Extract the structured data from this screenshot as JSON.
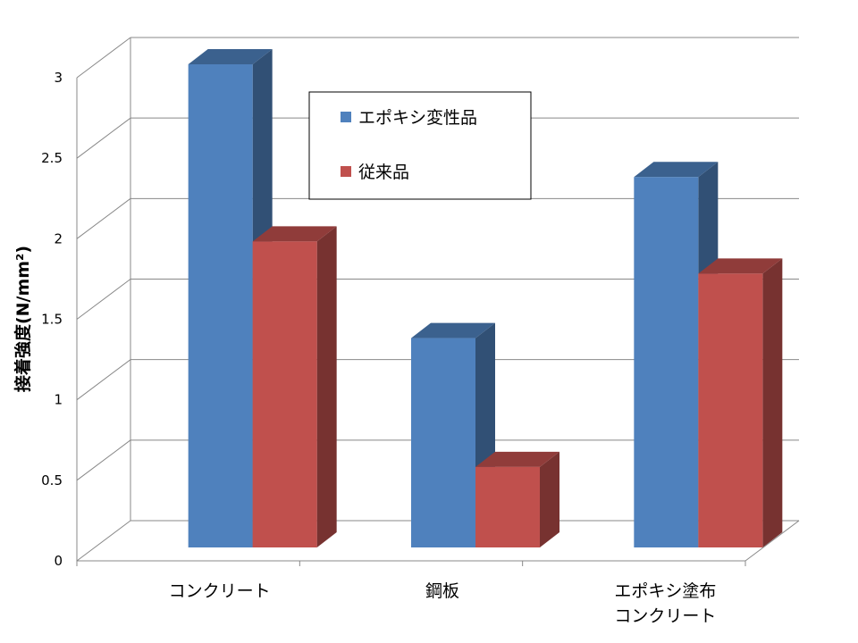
{
  "chart_data": {
    "type": "bar",
    "categories": [
      "コンクリート",
      "鋼板",
      "エポキシ塗布\nコンクリート"
    ],
    "series": [
      {
        "name": "エポキシ変性品",
        "values": [
          3.0,
          1.3,
          2.3
        ],
        "color": "#4F81BD"
      },
      {
        "name": "従来品",
        "values": [
          1.9,
          0.5,
          1.7
        ],
        "color": "#C0504D"
      }
    ],
    "ylabel": "接着強度(N/mm²)",
    "ylim": [
      0,
      3
    ],
    "yticks": [
      "0",
      "0.5",
      "1",
      "1.5",
      "2",
      "2.5",
      "3"
    ],
    "grid": true,
    "legend": "top-center",
    "style": "3d-clustered-column"
  }
}
